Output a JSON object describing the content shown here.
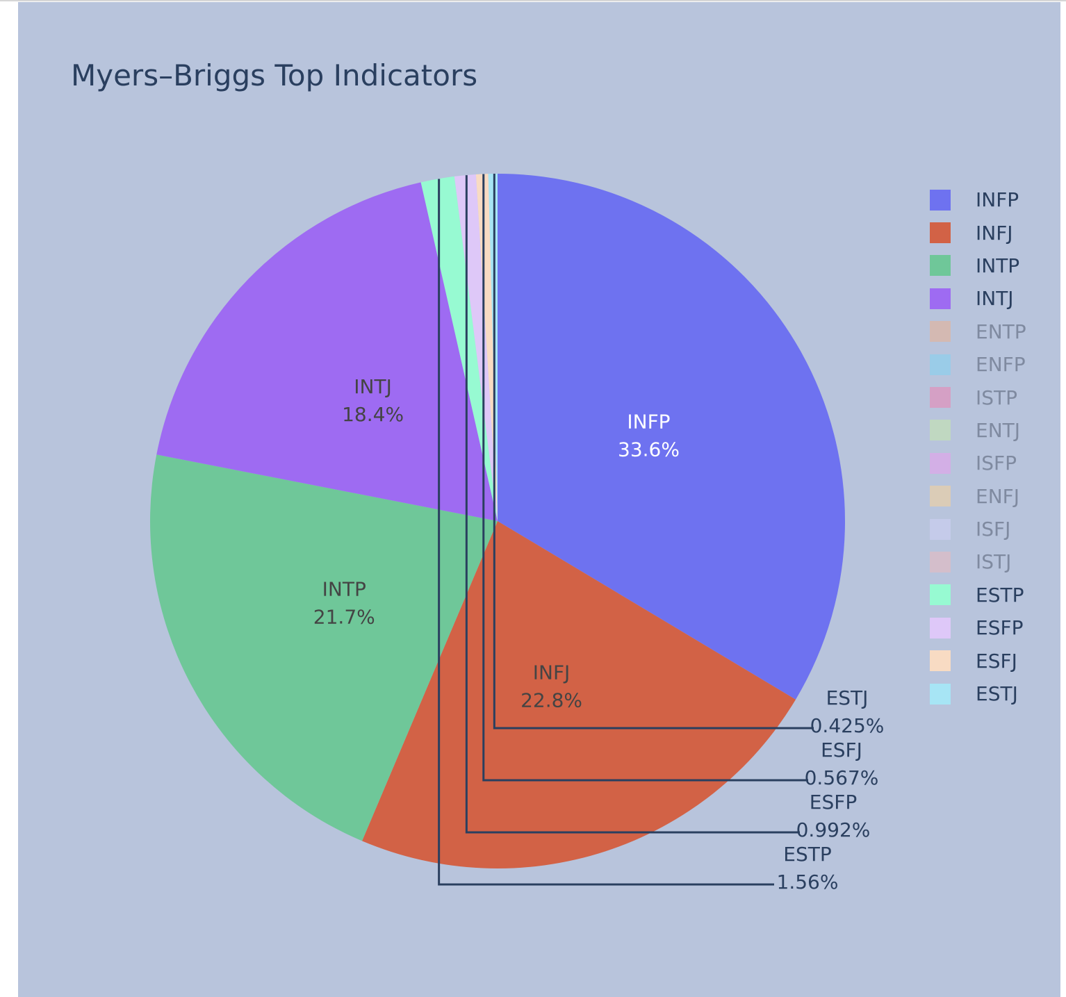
{
  "chart_data": {
    "type": "pie",
    "title": "Myers–Briggs Top Indicators",
    "slices": [
      {
        "label": "INFP",
        "percent": 33.6,
        "color": "#6e72f0",
        "visible": true,
        "text_color": "#ffffff"
      },
      {
        "label": "INFJ",
        "percent": 22.8,
        "color": "#d26246",
        "visible": true,
        "text_color": "#444444"
      },
      {
        "label": "INTP",
        "percent": 21.7,
        "color": "#6fc799",
        "visible": true,
        "text_color": "#444444"
      },
      {
        "label": "INTJ",
        "percent": 18.4,
        "color": "#9e6bf2",
        "visible": true,
        "text_color": "#444444"
      },
      {
        "label": "ENTP",
        "percent": null,
        "color": "#f0ae88",
        "visible": false
      },
      {
        "label": "ENFP",
        "percent": null,
        "color": "#7bd3f4",
        "visible": false
      },
      {
        "label": "ISTP",
        "percent": null,
        "color": "#f27cae",
        "visible": false
      },
      {
        "label": "ENTJ",
        "percent": null,
        "color": "#c7eca6",
        "visible": false
      },
      {
        "label": "ISFP",
        "percent": null,
        "color": "#ee9af0",
        "visible": false
      },
      {
        "label": "ENFJ",
        "percent": null,
        "color": "#fdd391",
        "visible": false
      },
      {
        "label": "ISFJ",
        "percent": null,
        "color": "#d1d1f8",
        "visible": false
      },
      {
        "label": "ISTJ",
        "percent": null,
        "color": "#f0b8b9",
        "visible": false
      },
      {
        "label": "ESTP",
        "percent": 1.56,
        "color": "#97fad2",
        "visible": true,
        "text_color": "#2a3f5f",
        "outside": true
      },
      {
        "label": "ESFP",
        "percent": 0.992,
        "color": "#dec8f8",
        "visible": true,
        "text_color": "#2a3f5f",
        "outside": true
      },
      {
        "label": "ESFJ",
        "percent": 0.567,
        "color": "#f8dbc3",
        "visible": true,
        "text_color": "#2a3f5f",
        "outside": true
      },
      {
        "label": "ESTJ",
        "percent": 0.425,
        "color": "#a7e5f5",
        "visible": true,
        "text_color": "#2a3f5f",
        "outside": true
      }
    ],
    "percent_format": [
      "33.6%",
      "22.8%",
      "21.7%",
      "18.4%",
      "",
      "",
      "",
      "",
      "",
      "",
      "",
      "",
      "1.56%",
      "0.992%",
      "0.567%",
      "0.425%"
    ],
    "legend_placement": "right",
    "direction": "clockwise",
    "start_angle": "top (12 o'clock)"
  }
}
